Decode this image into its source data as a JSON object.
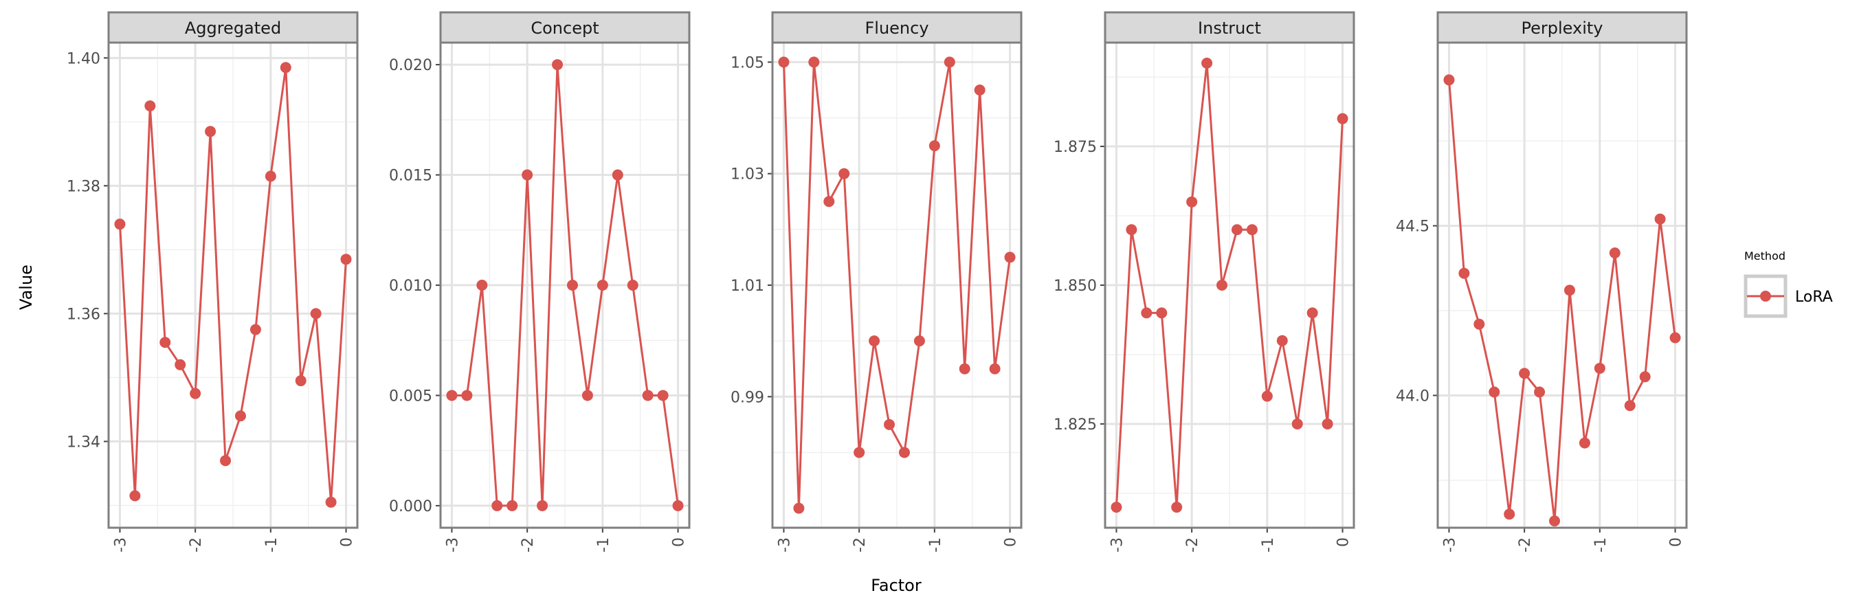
{
  "chart_data": {
    "type": "line",
    "xlabel": "Factor",
    "ylabel": "Value",
    "legend": {
      "title": "Method",
      "entries": [
        "LoRA"
      ],
      "placement": "right"
    },
    "series_color": "#d9534f",
    "x": [
      -3.0,
      -2.8,
      -2.6,
      -2.4,
      -2.2,
      -2.0,
      -1.8,
      -1.6,
      -1.4,
      -1.2,
      -1.0,
      -0.8,
      -0.6,
      -0.4,
      -0.2,
      0.0
    ],
    "xticks": [
      "-3",
      "-2",
      "-1",
      "0"
    ],
    "grid": true,
    "panels": [
      {
        "title": "Aggregated",
        "ylim": [
          1.3265,
          1.4024
        ],
        "yticks": [
          "1.34",
          "1.36",
          "1.38",
          "1.40"
        ],
        "series": [
          {
            "name": "LoRA",
            "values": [
              1.374,
              1.3315,
              1.3925,
              1.3555,
              1.352,
              1.3475,
              1.3885,
              1.337,
              1.344,
              1.3575,
              1.3815,
              1.3985,
              1.3495,
              1.36,
              1.3305,
              1.3685
            ]
          }
        ]
      },
      {
        "title": "Concept",
        "ylim": [
          -0.001,
          0.021
        ],
        "yticks": [
          "0.000",
          "0.005",
          "0.010",
          "0.015",
          "0.020"
        ],
        "series": [
          {
            "name": "LoRA",
            "values": [
              0.005,
              0.005,
              0.01,
              0.0,
              0.0,
              0.015,
              0.0,
              0.02,
              0.01,
              0.005,
              0.01,
              0.015,
              0.01,
              0.005,
              0.005,
              0.0
            ]
          }
        ]
      },
      {
        "title": "Fluency",
        "ylim": [
          0.9665,
          1.0535
        ],
        "yticks": [
          "0.99",
          "1.01",
          "1.03",
          "1.05"
        ],
        "series": [
          {
            "name": "LoRA",
            "values": [
              1.05,
              0.97,
              1.05,
              1.025,
              1.03,
              0.98,
              1.0,
              0.985,
              0.98,
              1.0,
              1.035,
              1.05,
              0.995,
              1.045,
              0.995,
              1.015
            ]
          }
        ]
      },
      {
        "title": "Instruct",
        "ylim": [
          1.8063,
          1.8937
        ],
        "yticks": [
          "1.825",
          "1.850",
          "1.875"
        ],
        "series": [
          {
            "name": "LoRA",
            "values": [
              1.81,
              1.86,
              1.845,
              1.845,
              1.81,
              1.865,
              1.89,
              1.85,
              1.86,
              1.86,
              1.83,
              1.84,
              1.825,
              1.845,
              1.825,
              1.88
            ]
          }
        ]
      },
      {
        "title": "Perplexity",
        "ylim": [
          43.61,
          45.04
        ],
        "yticks": [
          "44.0",
          "44.5"
        ],
        "series": [
          {
            "name": "LoRA",
            "values": [
              44.93,
              44.36,
              44.21,
              44.01,
              43.65,
              44.065,
              44.01,
              43.63,
              44.31,
              43.86,
              44.08,
              44.42,
              43.97,
              44.055,
              44.52,
              44.17
            ]
          }
        ]
      }
    ]
  }
}
